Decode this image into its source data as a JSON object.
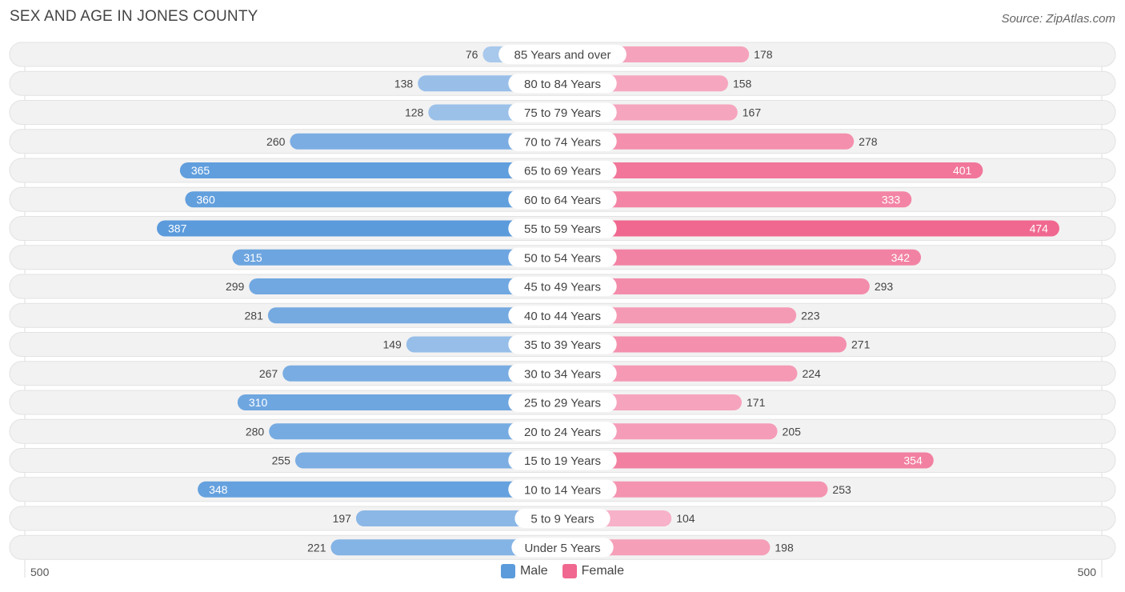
{
  "header": {
    "title": "SEX AND AGE IN JONES COUNTY",
    "source": "Source: ZipAtlas.com"
  },
  "legend": {
    "male_label": "Male",
    "female_label": "Female"
  },
  "colors": {
    "male_light": "#a8c8ec",
    "male_dark": "#5b9bdc",
    "female_light": "#f7b3c9",
    "female_dark": "#f0688f",
    "row_bg": "#f1f1f1"
  },
  "chart_data": {
    "type": "bar",
    "orientation": "horizontal-diverging",
    "title": "SEX AND AGE IN JONES COUNTY",
    "categories": [
      "85 Years and over",
      "80 to 84 Years",
      "75 to 79 Years",
      "70 to 74 Years",
      "65 to 69 Years",
      "60 to 64 Years",
      "55 to 59 Years",
      "50 to 54 Years",
      "45 to 49 Years",
      "40 to 44 Years",
      "35 to 39 Years",
      "30 to 34 Years",
      "25 to 29 Years",
      "20 to 24 Years",
      "15 to 19 Years",
      "10 to 14 Years",
      "5 to 9 Years",
      "Under 5 Years"
    ],
    "series": [
      {
        "name": "Male",
        "values": [
          76,
          138,
          128,
          260,
          365,
          360,
          387,
          315,
          299,
          281,
          149,
          267,
          310,
          280,
          255,
          348,
          197,
          221
        ]
      },
      {
        "name": "Female",
        "values": [
          178,
          158,
          167,
          278,
          401,
          333,
          474,
          342,
          293,
          223,
          271,
          224,
          171,
          205,
          354,
          253,
          104,
          198
        ]
      }
    ],
    "xlim": [
      -500,
      500
    ],
    "axis_labels": {
      "left": "500",
      "right": "500"
    },
    "legend_position": "bottom-center"
  }
}
